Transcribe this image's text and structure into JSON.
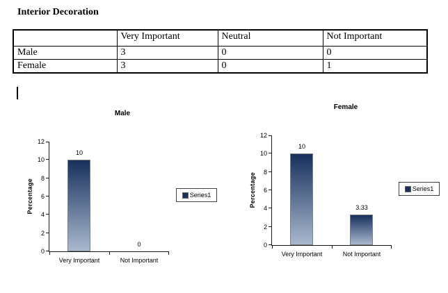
{
  "document": {
    "title": "Interior Decoration"
  },
  "table": {
    "headers": [
      "",
      "Very Important",
      "Neutral",
      "Not Important"
    ],
    "rows": [
      {
        "label": "Male",
        "values": [
          "3",
          "0",
          "0"
        ]
      },
      {
        "label": "Female",
        "values": [
          "3",
          "0",
          "1"
        ]
      }
    ]
  },
  "chart_data": [
    {
      "type": "bar",
      "title": "Male",
      "xlabel": "",
      "ylabel": "Percentage",
      "categories": [
        "Very Important",
        "Not Important"
      ],
      "values": [
        10,
        0
      ],
      "data_labels": [
        "10",
        "0"
      ],
      "ylim": [
        0,
        12
      ],
      "ytick_step": 2,
      "grid": false,
      "legend": [
        "Series1"
      ],
      "legend_position": "right"
    },
    {
      "type": "bar",
      "title": "Female",
      "xlabel": "",
      "ylabel": "Percentage",
      "categories": [
        "Very Important",
        "Not Important"
      ],
      "values": [
        10,
        3.33
      ],
      "data_labels": [
        "10",
        "3.33"
      ],
      "ylim": [
        0,
        12
      ],
      "ytick_step": 2,
      "grid": false,
      "legend": [
        "Series1"
      ],
      "legend_position": "right"
    }
  ],
  "colors": {
    "bar_gradient_top": "#17305c",
    "bar_gradient_bottom": "#a9b8ce",
    "bar_border": "#808080",
    "axis": "#1a1a1a",
    "text": "#000000",
    "table_border": "#000000"
  }
}
